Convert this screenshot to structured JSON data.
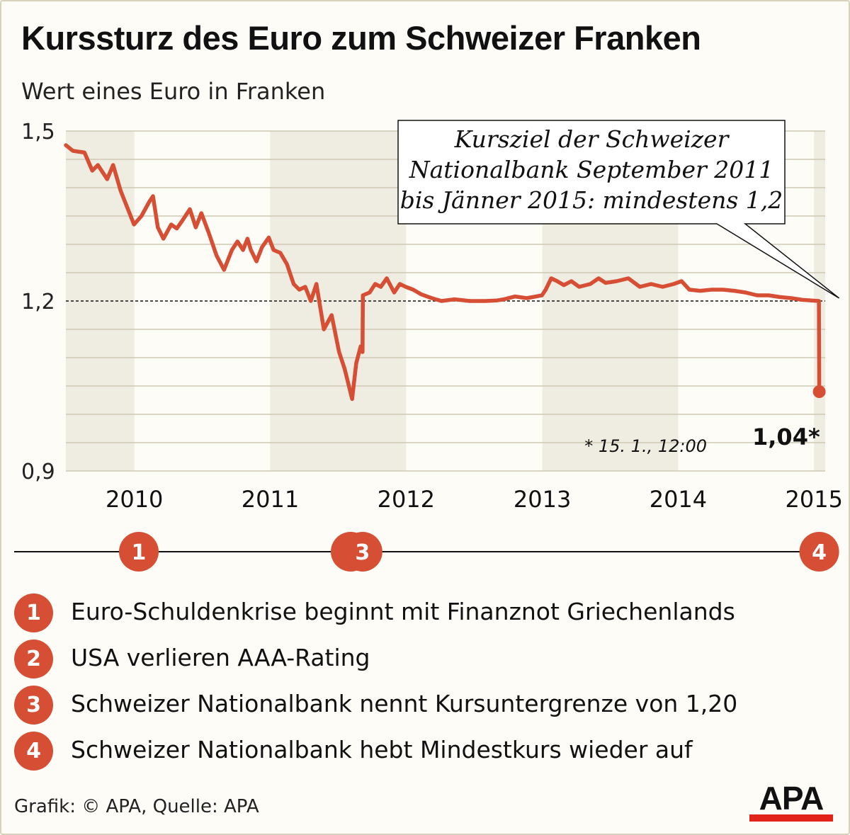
{
  "header": {
    "title": "Kurssturz des Euro zum Schweizer Franken",
    "subtitle": "Wert eines Euro in Franken"
  },
  "chart_data": {
    "type": "line",
    "ylim": [
      0.9,
      1.5
    ],
    "xlim": [
      "2009-07-01",
      "2015-01-31"
    ],
    "y_ticks": [
      {
        "value": 1.5,
        "label": "1,5"
      },
      {
        "value": 1.2,
        "label": "1,2"
      },
      {
        "value": 0.9,
        "label": "0,9"
      }
    ],
    "x_ticks": [
      {
        "value": "2010-01-01",
        "label": "2010"
      },
      {
        "value": "2011-01-01",
        "label": "2011"
      },
      {
        "value": "2012-01-01",
        "label": "2012"
      },
      {
        "value": "2013-01-01",
        "label": "2013"
      },
      {
        "value": "2014-01-01",
        "label": "2014"
      },
      {
        "value": "2015-01-01",
        "label": "2015"
      }
    ],
    "grid": true,
    "reference_line": {
      "value": 1.2
    },
    "annotation": {
      "lines": [
        "Kursziel der Schweizer",
        "Nationalbank September 2011",
        "bis Jänner 2015: mindestens 1,2"
      ]
    },
    "end_label": "1,04*",
    "footnote": "* 15. 1., 12:00",
    "series": [
      {
        "color": "#d64f34",
        "points": [
          [
            "2009-07-01",
            1.475
          ],
          [
            "2009-07-20",
            1.465
          ],
          [
            "2009-08-20",
            1.462
          ],
          [
            "2009-09-10",
            1.43
          ],
          [
            "2009-09-25",
            1.44
          ],
          [
            "2009-10-20",
            1.415
          ],
          [
            "2009-11-05",
            1.44
          ],
          [
            "2009-11-25",
            1.395
          ],
          [
            "2009-12-10",
            1.37
          ],
          [
            "2009-12-31",
            1.335
          ],
          [
            "2010-01-20",
            1.35
          ],
          [
            "2010-02-10",
            1.375
          ],
          [
            "2010-02-20",
            1.385
          ],
          [
            "2010-03-05",
            1.33
          ],
          [
            "2010-03-20",
            1.31
          ],
          [
            "2010-04-10",
            1.335
          ],
          [
            "2010-04-25",
            1.328
          ],
          [
            "2010-05-10",
            1.342
          ],
          [
            "2010-05-30",
            1.362
          ],
          [
            "2010-06-15",
            1.33
          ],
          [
            "2010-06-30",
            1.355
          ],
          [
            "2010-07-20",
            1.32
          ],
          [
            "2010-08-10",
            1.28
          ],
          [
            "2010-08-30",
            1.255
          ],
          [
            "2010-09-20",
            1.29
          ],
          [
            "2010-10-05",
            1.305
          ],
          [
            "2010-10-20",
            1.29
          ],
          [
            "2010-11-01",
            1.31
          ],
          [
            "2010-11-10",
            1.29
          ],
          [
            "2010-11-25",
            1.27
          ],
          [
            "2010-12-10",
            1.295
          ],
          [
            "2010-12-28",
            1.312
          ],
          [
            "2011-01-10",
            1.29
          ],
          [
            "2011-01-28",
            1.285
          ],
          [
            "2011-02-15",
            1.265
          ],
          [
            "2011-03-05",
            1.23
          ],
          [
            "2011-03-20",
            1.22
          ],
          [
            "2011-04-05",
            1.225
          ],
          [
            "2011-04-20",
            1.2
          ],
          [
            "2011-05-05",
            1.23
          ],
          [
            "2011-05-25",
            1.15
          ],
          [
            "2011-06-15",
            1.175
          ],
          [
            "2011-07-05",
            1.11
          ],
          [
            "2011-07-20",
            1.08
          ],
          [
            "2011-08-09",
            1.027
          ],
          [
            "2011-08-20",
            1.09
          ],
          [
            "2011-09-01",
            1.12
          ],
          [
            "2011-09-06",
            1.11
          ],
          [
            "2011-09-07",
            1.21
          ],
          [
            "2011-09-25",
            1.215
          ],
          [
            "2011-10-10",
            1.23
          ],
          [
            "2011-10-25",
            1.225
          ],
          [
            "2011-11-10",
            1.24
          ],
          [
            "2011-11-30",
            1.215
          ],
          [
            "2011-12-15",
            1.23
          ],
          [
            "2011-12-31",
            1.225
          ],
          [
            "2012-01-20",
            1.22
          ],
          [
            "2012-02-10",
            1.212
          ],
          [
            "2012-03-10",
            1.205
          ],
          [
            "2012-04-05",
            1.2
          ],
          [
            "2012-05-10",
            1.203
          ],
          [
            "2012-06-20",
            1.2
          ],
          [
            "2012-08-01",
            1.2
          ],
          [
            "2012-09-01",
            1.201
          ],
          [
            "2012-09-20",
            1.203
          ],
          [
            "2012-10-20",
            1.208
          ],
          [
            "2012-11-20",
            1.205
          ],
          [
            "2012-12-31",
            1.21
          ],
          [
            "2013-01-10",
            1.22
          ],
          [
            "2013-01-25",
            1.24
          ],
          [
            "2013-02-10",
            1.235
          ],
          [
            "2013-02-28",
            1.228
          ],
          [
            "2013-03-20",
            1.235
          ],
          [
            "2013-04-10",
            1.225
          ],
          [
            "2013-05-10",
            1.23
          ],
          [
            "2013-06-01",
            1.24
          ],
          [
            "2013-06-20",
            1.232
          ],
          [
            "2013-07-20",
            1.235
          ],
          [
            "2013-08-20",
            1.24
          ],
          [
            "2013-09-20",
            1.225
          ],
          [
            "2013-10-20",
            1.23
          ],
          [
            "2013-11-20",
            1.225
          ],
          [
            "2013-12-20",
            1.23
          ],
          [
            "2014-01-10",
            1.235
          ],
          [
            "2014-01-31",
            1.22
          ],
          [
            "2014-03-01",
            1.218
          ],
          [
            "2014-04-01",
            1.22
          ],
          [
            "2014-05-01",
            1.22
          ],
          [
            "2014-06-01",
            1.218
          ],
          [
            "2014-07-01",
            1.215
          ],
          [
            "2014-08-01",
            1.21
          ],
          [
            "2014-09-01",
            1.21
          ],
          [
            "2014-10-01",
            1.207
          ],
          [
            "2014-11-01",
            1.205
          ],
          [
            "2014-12-01",
            1.202
          ],
          [
            "2015-01-14",
            1.2
          ],
          [
            "2015-01-15",
            1.04
          ]
        ]
      }
    ],
    "events": [
      {
        "number": "1",
        "date": "2010-01-13"
      },
      {
        "number": "2",
        "date": "2011-08-05"
      },
      {
        "number": "3",
        "date": "2011-09-06"
      },
      {
        "number": "4",
        "date": "2015-01-15"
      }
    ]
  },
  "legend": [
    {
      "number": "1",
      "text": "Euro-Schuldenkrise beginnt mit Finanznot Griechenlands"
    },
    {
      "number": "2",
      "text": "USA verlieren AAA-Rating"
    },
    {
      "number": "3",
      "text": "Schweizer Nationalbank nennt Kursuntergrenze von 1,20"
    },
    {
      "number": "4",
      "text": "Schweizer Nationalbank hebt Mindestkurs wieder auf"
    }
  ],
  "footer": {
    "source": "Grafik: © APA, Quelle: APA",
    "logo_text": "APA"
  },
  "colors": {
    "line": "#d64f34",
    "band": "#efece1",
    "grid": "#cfc9b5",
    "logo_bar": "#e2231a"
  }
}
